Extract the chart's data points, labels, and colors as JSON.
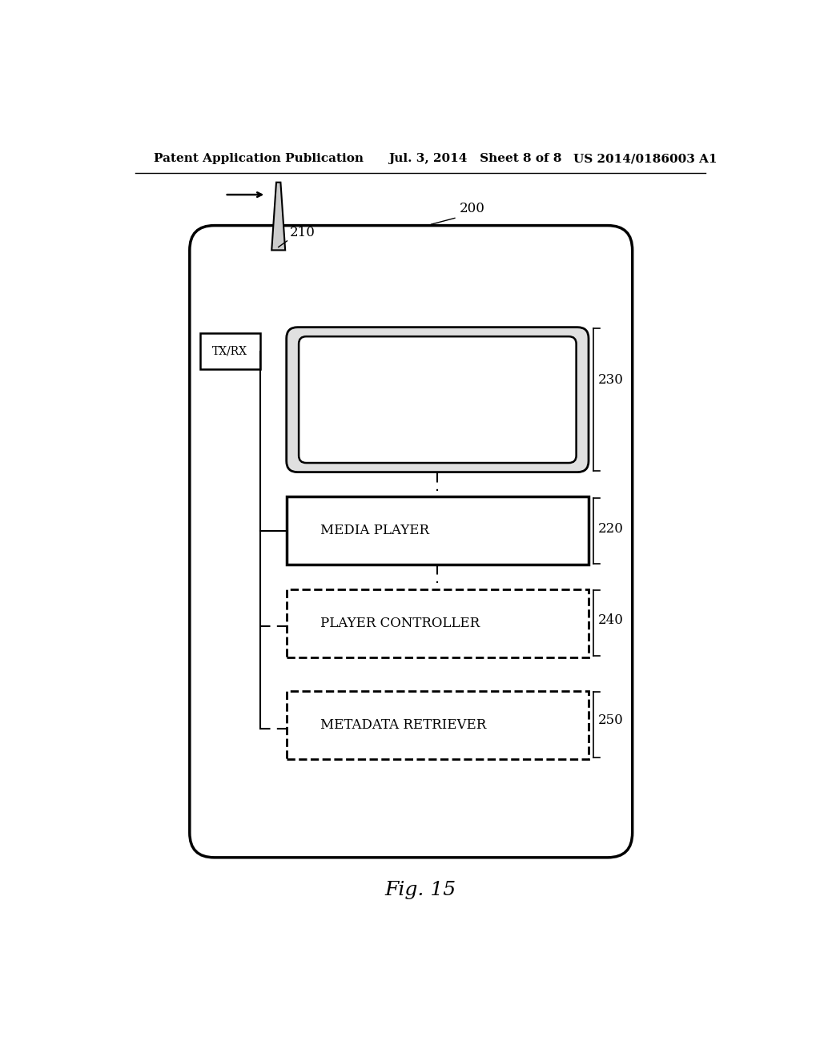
{
  "bg_color": "#ffffff",
  "header_left": "Patent Application Publication",
  "header_mid": "Jul. 3, 2014   Sheet 8 of 8",
  "header_right": "US 2014/0186003 A1",
  "figure_label": "Fig. 15",
  "label_200": "200",
  "label_210": "210",
  "label_220": "220",
  "label_230": "230",
  "label_240": "240",
  "label_250": "250"
}
